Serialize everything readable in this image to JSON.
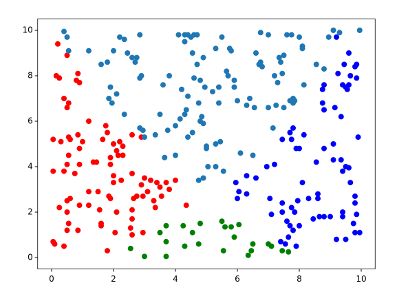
{
  "chart_data": {
    "type": "scatter",
    "xlim": [
      -0.45,
      10.45
    ],
    "ylim": [
      -0.5,
      10.5
    ],
    "xticks": [
      0,
      2,
      4,
      6,
      8,
      10
    ],
    "yticks": [
      0,
      2,
      4,
      6,
      8,
      10
    ],
    "series": [
      {
        "color": "#ff0000",
        "x": [
          0.05,
          0.1,
          0.4,
          0.05,
          0.05,
          0.15,
          0.25,
          0.2,
          0.5,
          0.4,
          0.55,
          0.5,
          0.85,
          0.8,
          0.9,
          0.3,
          0.55,
          0.6,
          0.85,
          0.9,
          1.2,
          1.0,
          0.55,
          0.5,
          0.9,
          0.4,
          0.75,
          0.25,
          0.5,
          0.6,
          0.9,
          0.5,
          0.55,
          0.5,
          0.85,
          1.2,
          1.2,
          1.5,
          1.55,
          1.6,
          1.6,
          1.35,
          1.45,
          1.75,
          1.8,
          1.65,
          2.0,
          2.1,
          2.2,
          2.3,
          2.15,
          1.9,
          1.9,
          2.3,
          2.6,
          2.9,
          2.0,
          2.0,
          2.25,
          1.85,
          1.9,
          2.1,
          2.05,
          1.8,
          2.6,
          2.9,
          3.0,
          3.2,
          3.4,
          3.5,
          3.7,
          3.8,
          4.0,
          2.65,
          2.75,
          2.95,
          3.3,
          3.55,
          3.35,
          2.6,
          2.6,
          2.55,
          2.6,
          2.95,
          4.35,
          3.1
        ],
        "values": [
          0.7,
          0.6,
          0.5,
          3.8,
          5.2,
          8.0,
          7.9,
          9.4,
          8.9,
          7.0,
          6.8,
          6.6,
          8.1,
          7.8,
          7.7,
          5.1,
          5.3,
          5.2,
          5.4,
          4.8,
          6.0,
          5.1,
          4.5,
          4.1,
          4.1,
          3.8,
          3.7,
          2.2,
          2.5,
          2.6,
          2.3,
          2.0,
          1.5,
          1.2,
          1.2,
          2.9,
          2.3,
          2.9,
          2.1,
          1.5,
          1.4,
          4.2,
          4.2,
          5.8,
          5.5,
          5.2,
          5.0,
          4.7,
          5.1,
          4.9,
          4.5,
          4.4,
          4.1,
          4.5,
          5.4,
          5.3,
          3.6,
          3.3,
          3.4,
          2.7,
          2.6,
          2.0,
          1.1,
          0.3,
          3.7,
          3.2,
          3.5,
          3.4,
          3.3,
          3.1,
          3.3,
          3.0,
          3.4,
          2.6,
          2.7,
          2.7,
          2.5,
          2.7,
          2.2,
          2.1,
          1.7,
          1.3,
          1.0,
          1.1,
          2.3,
          2.9
        ]
      },
      {
        "color": "#008000",
        "x": [
          2.55,
          3.0,
          3.5,
          3.7,
          3.7,
          3.7,
          4.25,
          4.3,
          4.55,
          4.75,
          4.8,
          5.5,
          5.55,
          5.6,
          5.8,
          5.9,
          6.05,
          6.35,
          6.45,
          6.5,
          7.0,
          7.1,
          7.45,
          7.65
        ],
        "values": [
          0.4,
          0.05,
          1.1,
          1.4,
          0.7,
          0.05,
          1.4,
          0.5,
          1.1,
          0.6,
          1.5,
          1.6,
          0.3,
          1.35,
          1.35,
          0.9,
          1.45,
          0.1,
          0.3,
          0.6,
          0.6,
          0.5,
          0.3,
          0.25
        ]
      },
      {
        "color": "#0000ff",
        "x": [
          5.95,
          6.0,
          6.05,
          6.3,
          6.3,
          6.6,
          6.95,
          7.2,
          7.05,
          7.1,
          7.45,
          7.7,
          7.8,
          7.75,
          7.9,
          7.45,
          7.45,
          7.75,
          7.95,
          7.85,
          8.1,
          8.3,
          8.6,
          8.55,
          8.45,
          8.6,
          8.8,
          9.0,
          8.65,
          7.6,
          7.7,
          7.8,
          7.65,
          7.4,
          7.9,
          8.0,
          7.55,
          8.0,
          8.15,
          8.8,
          9.1,
          9.1,
          9.35,
          9.5,
          9.6,
          9.4,
          9.65,
          9.8,
          9.8,
          9.75,
          9.8,
          9.95,
          9.85,
          9.4,
          9.4,
          9.2,
          9.5,
          9.35,
          9.9,
          8.75,
          8.75,
          8.8,
          8.8,
          9.15,
          9.25,
          9.4,
          9.45,
          9.5,
          9.6,
          9.65,
          9.6,
          9.8,
          9.85,
          9.85,
          9.55,
          9.2
        ],
        "values": [
          3.3,
          2.6,
          2.9,
          2.8,
          3.6,
          3.5,
          4.0,
          4.1,
          2.6,
          1.9,
          5.2,
          5.5,
          5.7,
          5.2,
          4.8,
          2.4,
          2.0,
          2.2,
          2.5,
          2.0,
          3.3,
          2.6,
          2.6,
          4.2,
          1.7,
          2.8,
          1.8,
          1.8,
          1.8,
          1.6,
          1.4,
          1.2,
          0.9,
          0.7,
          0.5,
          1.4,
          0.6,
          4.8,
          5.4,
          4.8,
          5.0,
          4.3,
          4.3,
          4.0,
          3.95,
          3.8,
          3.3,
          2.7,
          2.4,
          1.5,
          1.1,
          1.1,
          1.9,
          2.0,
          1.8,
          0.8,
          0.8,
          6.2,
          5.3,
          6.8,
          7.4,
          7.6,
          6.5,
          6.6,
          8.1,
          7.6,
          8.5,
          7.5,
          7.6,
          8.0,
          9.0,
          8.4,
          7.9,
          8.5,
          7.4,
          9.7
        ]
      },
      {
        "color": "#1f77b4",
        "x": [
          0.4,
          0.5,
          0.55,
          1.2,
          1.6,
          1.8,
          2.0,
          2.2,
          2.35,
          2.45,
          2.6,
          2.75,
          2.85,
          2.7,
          1.9,
          1.85,
          1.95,
          2.1,
          2.35,
          2.85,
          2.9,
          2.85,
          2.95,
          3.0,
          3.35,
          3.5,
          3.6,
          3.8,
          3.75,
          4.0,
          3.65,
          4.0,
          4.15,
          4.3,
          4.35,
          4.2,
          4.4,
          4.6,
          4.75,
          4.85,
          4.9,
          4.8,
          4.55,
          4.4,
          4.75,
          4.9,
          5.0,
          5.0,
          5.05,
          5.3,
          5.3,
          5.45,
          5.55,
          5.2,
          5.4,
          5.4,
          5.65,
          5.7,
          5.9,
          5.3,
          5.5,
          5.75,
          5.8,
          4.1,
          4.3,
          4.4,
          4.5,
          4.6,
          4.7,
          4.3,
          4.55,
          4.7,
          4.8,
          4.9,
          4.95,
          5.9,
          6.0,
          6.1,
          6.4,
          6.5,
          6.3,
          6.55,
          6.6,
          6.75,
          6.75,
          6.8,
          7.0,
          7.0,
          7.25,
          7.3,
          7.35,
          7.4,
          7.45,
          7.5,
          7.5,
          7.6,
          7.75,
          7.8,
          7.8,
          7.85,
          8.0,
          8.1,
          8.1,
          8.15,
          8.55,
          8.8,
          8.95,
          9.1,
          9.3,
          9.95,
          7.15,
          7.2,
          7.7,
          6.7
        ],
        "values": [
          9.95,
          9.7,
          9.1,
          9.1,
          8.5,
          8.6,
          9.1,
          9.7,
          9.6,
          9.0,
          8.8,
          8.8,
          9.8,
          8.6,
          7.5,
          7.0,
          6.8,
          7.2,
          6.3,
          7.9,
          8.0,
          5.7,
          5.6,
          5.3,
          5.4,
          6.3,
          7.6,
          8.0,
          5.6,
          5.8,
          4.4,
          4.5,
          6.1,
          6.3,
          6.5,
          7.4,
          7.1,
          7.9,
          6.8,
          6.2,
          5.9,
          6.0,
          5.5,
          5.3,
          3.4,
          3.5,
          4.9,
          4.8,
          4.0,
          4.0,
          5.0,
          5.1,
          3.8,
          7.3,
          6.8,
          7.5,
          8.2,
          8.0,
          7.8,
          9.2,
          9.7,
          9.2,
          9.1,
          9.8,
          9.8,
          9.8,
          9.7,
          9.8,
          9.8,
          9.5,
          9.0,
          8.5,
          7.8,
          8.8,
          7.5,
          7.5,
          6.9,
          4.6,
          7.0,
          4.5,
          6.7,
          6.6,
          9.0,
          9.9,
          8.6,
          8.4,
          9.8,
          6.6,
          6.7,
          7.7,
          8.8,
          8.6,
          8.1,
          6.6,
          8.9,
          9.8,
          9.8,
          7.0,
          6.8,
          6.9,
          9.7,
          9.3,
          9.2,
          7.6,
          8.5,
          8.3,
          9.7,
          10.0,
          9.9,
          10.0,
          5.7,
          8.0,
          6.9,
          8.5
        ]
      }
    ]
  }
}
